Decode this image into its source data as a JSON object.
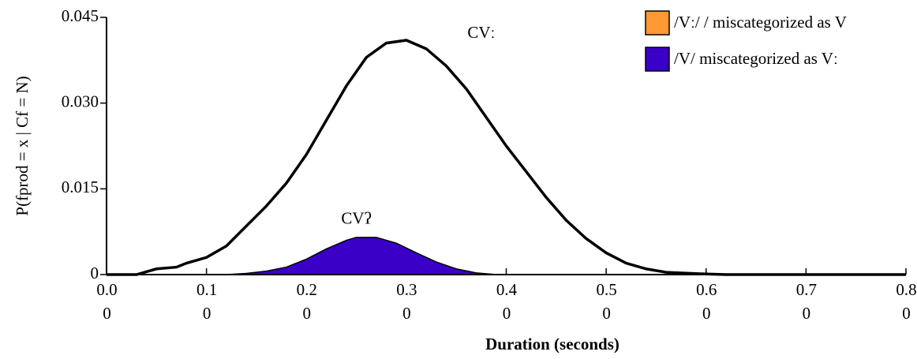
{
  "chart_data": {
    "type": "line",
    "xlabel": "Duration (seconds)",
    "ylabel": "P(fprod = x | Cf = N)",
    "xlim": [
      0,
      0.8
    ],
    "xticks": [
      {
        "value": 0,
        "label": "0.00"
      },
      {
        "value": 0.1,
        "label": "0.10"
      },
      {
        "value": 0.2,
        "label": "0.20"
      },
      {
        "value": 0.3,
        "label": "0.30"
      },
      {
        "value": 0.4,
        "label": "0.40"
      },
      {
        "value": 0.5,
        "label": "0.50"
      },
      {
        "value": 0.6,
        "label": "0.60"
      },
      {
        "value": 0.7,
        "label": "0.70"
      },
      {
        "value": 0.8,
        "label": "0.80"
      }
    ],
    "ylim": [
      0,
      0.045
    ],
    "yticks": [
      0,
      0.015,
      {
        "value": 0.03,
        "label": "0.030"
      },
      0.045
    ],
    "series": [
      {
        "name": "CVː",
        "color": "#000000",
        "area": false,
        "x": [
          0,
          0.03,
          0.05,
          0.07,
          0.08,
          0.1,
          0.12,
          0.14,
          0.16,
          0.18,
          0.2,
          0.22,
          0.24,
          0.26,
          0.28,
          0.3,
          0.32,
          0.34,
          0.36,
          0.38,
          0.4,
          0.42,
          0.44,
          0.46,
          0.48,
          0.5,
          0.52,
          0.54,
          0.56,
          0.6,
          0.62,
          0.8
        ],
        "values": [
          0,
          0,
          0.001,
          0.0013,
          0.002,
          0.003,
          0.005,
          0.0085,
          0.012,
          0.016,
          0.021,
          0.027,
          0.033,
          0.038,
          0.0405,
          0.041,
          0.0395,
          0.0365,
          0.0325,
          0.0275,
          0.0225,
          0.018,
          0.0135,
          0.0095,
          0.0063,
          0.0038,
          0.002,
          0.001,
          0.0004,
          0.0001,
          0,
          0
        ]
      },
      {
        "name": "CVʔ",
        "color": "#3a00c8",
        "area": true,
        "x": [
          0.12,
          0.14,
          0.16,
          0.18,
          0.2,
          0.22,
          0.24,
          0.25,
          0.27,
          0.29,
          0.31,
          0.33,
          0.35,
          0.37,
          0.39
        ],
        "values": [
          0,
          0.0002,
          0.0006,
          0.0013,
          0.0027,
          0.0045,
          0.006,
          0.0065,
          0.0065,
          0.0055,
          0.0038,
          0.0022,
          0.001,
          0.0003,
          0
        ]
      }
    ],
    "legend": [
      {
        "label": "/Vː/ / miscategorized as V",
        "color": "#ff9933"
      },
      {
        "label": "/V/ miscategorized as Vː",
        "color": "#3a00c8"
      }
    ]
  }
}
